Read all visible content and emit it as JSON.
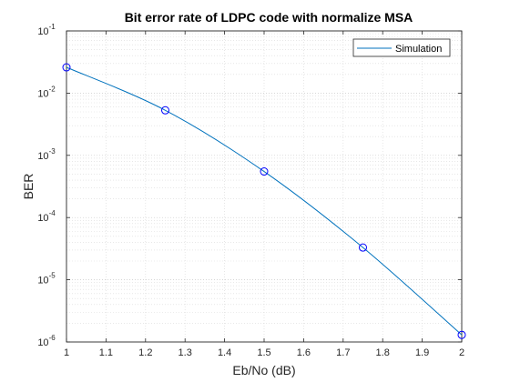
{
  "chart_data": {
    "type": "line",
    "title": "Bit error rate of LDPC code with normalize MSA",
    "xlabel": "Eb/No (dB)",
    "ylabel": "BER",
    "x": [
      1,
      1.25,
      1.5,
      1.75,
      2
    ],
    "series": [
      {
        "name": "Simulation",
        "values": [
          0.026,
          0.0053,
          0.00055,
          3.3e-05,
          1.3e-06
        ]
      }
    ],
    "xlim": [
      1,
      2
    ],
    "ylim": [
      1e-06,
      0.1
    ],
    "yscale": "log",
    "xticks": [
      "1",
      "1.1",
      "1.2",
      "1.3",
      "1.4",
      "1.5",
      "1.6",
      "1.7",
      "1.8",
      "1.9",
      "2"
    ],
    "yticks": [
      {
        "base": "10",
        "exp": "-6"
      },
      {
        "base": "10",
        "exp": "-5"
      },
      {
        "base": "10",
        "exp": "-4"
      },
      {
        "base": "10",
        "exp": "-3"
      },
      {
        "base": "10",
        "exp": "-2"
      },
      {
        "base": "10",
        "exp": "-1"
      }
    ],
    "grid": true,
    "minor_grid": true,
    "legend_position": "top-right",
    "line_color": "#0072BD",
    "marker": "circle"
  }
}
